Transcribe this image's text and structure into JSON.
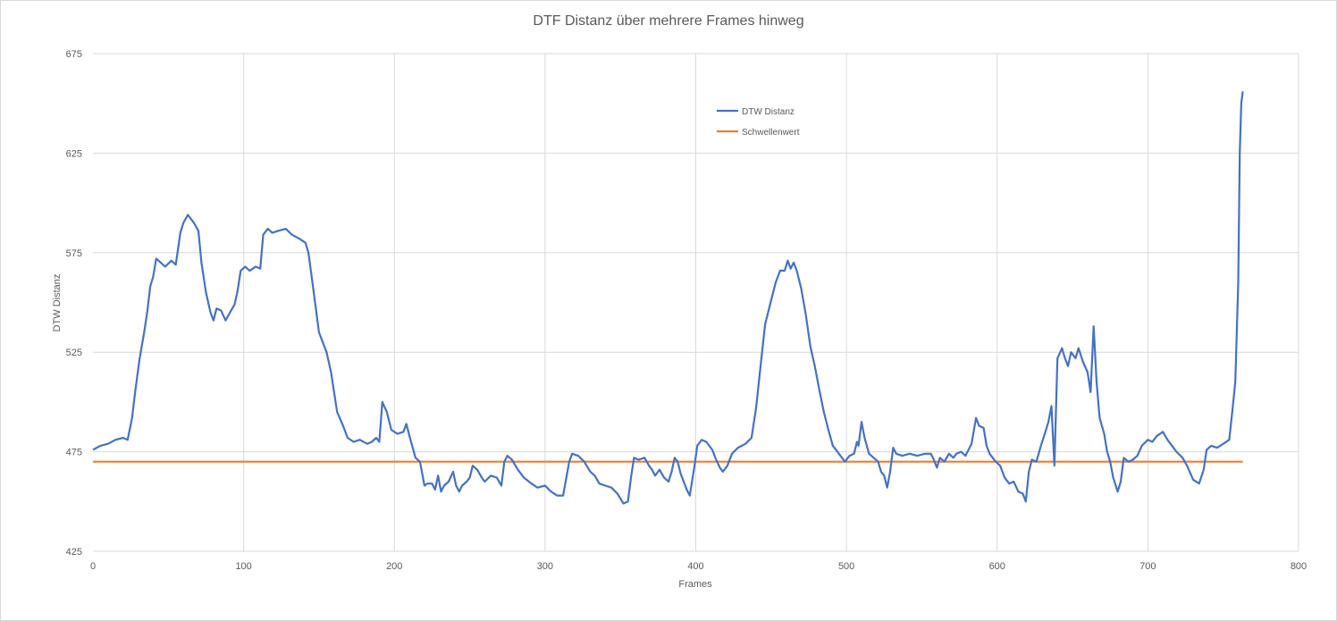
{
  "chart_data": {
    "type": "line",
    "title": "DTF Distanz über mehrere Frames hinweg",
    "xlabel": "Frames",
    "ylabel": "DTW Distanz",
    "xlim": [
      0,
      800
    ],
    "ylim": [
      425,
      675
    ],
    "xticks": [
      0,
      100,
      200,
      300,
      400,
      500,
      600,
      700,
      800
    ],
    "yticks": [
      425,
      475,
      525,
      575,
      625,
      675
    ],
    "grid": true,
    "legend_position": "top-center",
    "series": [
      {
        "name": "DTW Distanz",
        "color": "#4472c4",
        "points": [
          [
            0,
            476
          ],
          [
            5,
            478
          ],
          [
            10,
            479
          ],
          [
            15,
            481
          ],
          [
            20,
            482
          ],
          [
            23,
            481
          ],
          [
            26,
            492
          ],
          [
            28,
            505
          ],
          [
            31,
            522
          ],
          [
            34,
            535
          ],
          [
            36,
            545
          ],
          [
            38,
            558
          ],
          [
            40,
            563
          ],
          [
            42,
            572
          ],
          [
            45,
            570
          ],
          [
            48,
            568
          ],
          [
            52,
            571
          ],
          [
            55,
            569
          ],
          [
            58,
            585
          ],
          [
            60,
            590
          ],
          [
            63,
            594
          ],
          [
            65,
            592
          ],
          [
            67,
            590
          ],
          [
            70,
            586
          ],
          [
            72,
            570
          ],
          [
            75,
            555
          ],
          [
            78,
            545
          ],
          [
            80,
            541
          ],
          [
            82,
            547
          ],
          [
            85,
            546
          ],
          [
            88,
            541
          ],
          [
            91,
            545
          ],
          [
            94,
            549
          ],
          [
            96,
            556
          ],
          [
            98,
            566
          ],
          [
            101,
            568
          ],
          [
            104,
            566
          ],
          [
            108,
            568
          ],
          [
            111,
            567
          ],
          [
            113,
            584
          ],
          [
            116,
            587
          ],
          [
            119,
            585
          ],
          [
            123,
            586
          ],
          [
            128,
            587
          ],
          [
            132,
            584
          ],
          [
            137,
            582
          ],
          [
            141,
            580
          ],
          [
            143,
            575
          ],
          [
            146,
            558
          ],
          [
            150,
            535
          ],
          [
            155,
            525
          ],
          [
            158,
            515
          ],
          [
            162,
            495
          ],
          [
            166,
            488
          ],
          [
            169,
            482
          ],
          [
            173,
            480
          ],
          [
            177,
            481
          ],
          [
            182,
            479
          ],
          [
            185,
            480
          ],
          [
            188,
            482
          ],
          [
            190,
            480
          ],
          [
            192,
            500
          ],
          [
            195,
            495
          ],
          [
            198,
            486
          ],
          [
            202,
            484
          ],
          [
            206,
            485
          ],
          [
            208,
            489
          ],
          [
            210,
            483
          ],
          [
            214,
            472
          ],
          [
            217,
            470
          ],
          [
            220,
            458
          ],
          [
            222,
            459
          ],
          [
            225,
            459
          ],
          [
            227,
            456
          ],
          [
            229,
            463
          ],
          [
            231,
            455
          ],
          [
            233,
            458
          ],
          [
            236,
            460
          ],
          [
            239,
            465
          ],
          [
            241,
            458
          ],
          [
            243,
            455
          ],
          [
            245,
            458
          ],
          [
            248,
            460
          ],
          [
            250,
            462
          ],
          [
            252,
            468
          ],
          [
            255,
            466
          ],
          [
            258,
            462
          ],
          [
            260,
            460
          ],
          [
            264,
            463
          ],
          [
            268,
            462
          ],
          [
            271,
            458
          ],
          [
            273,
            470
          ],
          [
            275,
            473
          ],
          [
            278,
            471
          ],
          [
            282,
            466
          ],
          [
            286,
            462
          ],
          [
            291,
            459
          ],
          [
            295,
            457
          ],
          [
            300,
            458
          ],
          [
            304,
            455
          ],
          [
            308,
            453
          ],
          [
            312,
            453
          ],
          [
            316,
            470
          ],
          [
            318,
            474
          ],
          [
            322,
            473
          ],
          [
            326,
            470
          ],
          [
            330,
            465
          ],
          [
            333,
            463
          ],
          [
            336,
            459
          ],
          [
            340,
            458
          ],
          [
            344,
            457
          ],
          [
            348,
            454
          ],
          [
            352,
            449
          ],
          [
            355,
            450
          ],
          [
            357,
            462
          ],
          [
            359,
            472
          ],
          [
            362,
            471
          ],
          [
            366,
            472
          ],
          [
            369,
            468
          ],
          [
            371,
            466
          ],
          [
            373,
            463
          ],
          [
            376,
            466
          ],
          [
            379,
            462
          ],
          [
            382,
            460
          ],
          [
            384,
            465
          ],
          [
            386,
            472
          ],
          [
            388,
            470
          ],
          [
            390,
            464
          ],
          [
            394,
            456
          ],
          [
            396,
            453
          ],
          [
            399,
            467
          ],
          [
            401,
            478
          ],
          [
            404,
            481
          ],
          [
            407,
            480
          ],
          [
            411,
            476
          ],
          [
            413,
            472
          ],
          [
            416,
            467
          ],
          [
            418,
            465
          ],
          [
            421,
            468
          ],
          [
            424,
            474
          ],
          [
            428,
            477
          ],
          [
            433,
            479
          ],
          [
            437,
            482
          ],
          [
            440,
            497
          ],
          [
            443,
            518
          ],
          [
            446,
            539
          ],
          [
            450,
            551
          ],
          [
            453,
            560
          ],
          [
            456,
            566
          ],
          [
            459,
            566
          ],
          [
            461,
            571
          ],
          [
            463,
            567
          ],
          [
            465,
            570
          ],
          [
            467,
            566
          ],
          [
            470,
            557
          ],
          [
            473,
            544
          ],
          [
            476,
            528
          ],
          [
            479,
            518
          ],
          [
            482,
            506
          ],
          [
            485,
            495
          ],
          [
            488,
            486
          ],
          [
            491,
            478
          ],
          [
            494,
            475
          ],
          [
            497,
            472
          ],
          [
            499,
            470
          ],
          [
            502,
            473
          ],
          [
            505,
            474
          ],
          [
            507,
            480
          ],
          [
            508,
            478
          ],
          [
            510,
            490
          ],
          [
            512,
            482
          ],
          [
            515,
            474
          ],
          [
            518,
            472
          ],
          [
            521,
            470
          ],
          [
            523,
            465
          ],
          [
            525,
            463
          ],
          [
            527,
            457
          ],
          [
            529,
            465
          ],
          [
            531,
            477
          ],
          [
            533,
            474
          ],
          [
            537,
            473
          ],
          [
            542,
            474
          ],
          [
            547,
            473
          ],
          [
            552,
            474
          ],
          [
            556,
            474
          ],
          [
            558,
            471
          ],
          [
            560,
            467
          ],
          [
            562,
            472
          ],
          [
            565,
            470
          ],
          [
            568,
            474
          ],
          [
            571,
            472
          ],
          [
            573,
            474
          ],
          [
            576,
            475
          ],
          [
            579,
            473
          ],
          [
            581,
            476
          ],
          [
            583,
            479
          ],
          [
            586,
            492
          ],
          [
            588,
            488
          ],
          [
            591,
            487
          ],
          [
            593,
            478
          ],
          [
            595,
            474
          ],
          [
            599,
            470
          ],
          [
            602,
            468
          ],
          [
            605,
            462
          ],
          [
            608,
            459
          ],
          [
            611,
            460
          ],
          [
            614,
            455
          ],
          [
            617,
            454
          ],
          [
            619,
            450
          ],
          [
            621,
            465
          ],
          [
            623,
            471
          ],
          [
            626,
            470
          ],
          [
            629,
            478
          ],
          [
            632,
            485
          ],
          [
            634,
            490
          ],
          [
            636,
            498
          ],
          [
            638,
            468
          ],
          [
            640,
            522
          ],
          [
            643,
            527
          ],
          [
            645,
            522
          ],
          [
            647,
            518
          ],
          [
            649,
            525
          ],
          [
            652,
            522
          ],
          [
            654,
            527
          ],
          [
            657,
            520
          ],
          [
            660,
            515
          ],
          [
            662,
            505
          ],
          [
            664,
            538
          ],
          [
            666,
            510
          ],
          [
            668,
            492
          ],
          [
            671,
            484
          ],
          [
            673,
            475
          ],
          [
            675,
            470
          ],
          [
            677,
            462
          ],
          [
            680,
            455
          ],
          [
            682,
            460
          ],
          [
            684,
            472
          ],
          [
            687,
            470
          ],
          [
            690,
            471
          ],
          [
            693,
            473
          ],
          [
            696,
            478
          ],
          [
            700,
            481
          ],
          [
            703,
            480
          ],
          [
            706,
            483
          ],
          [
            710,
            485
          ],
          [
            713,
            481
          ],
          [
            716,
            478
          ],
          [
            719,
            475
          ],
          [
            723,
            472
          ],
          [
            726,
            468
          ],
          [
            730,
            461
          ],
          [
            734,
            459
          ],
          [
            737,
            466
          ],
          [
            739,
            476
          ],
          [
            742,
            478
          ],
          [
            746,
            477
          ],
          [
            750,
            479
          ],
          [
            754,
            481
          ],
          [
            756,
            495
          ],
          [
            758,
            510
          ],
          [
            760,
            560
          ],
          [
            761,
            625
          ],
          [
            762,
            650
          ],
          [
            763,
            656
          ]
        ]
      },
      {
        "name": "Schwellenwert",
        "color": "#ed7d31",
        "points": [
          [
            0,
            470
          ],
          [
            763,
            470
          ]
        ]
      }
    ]
  }
}
